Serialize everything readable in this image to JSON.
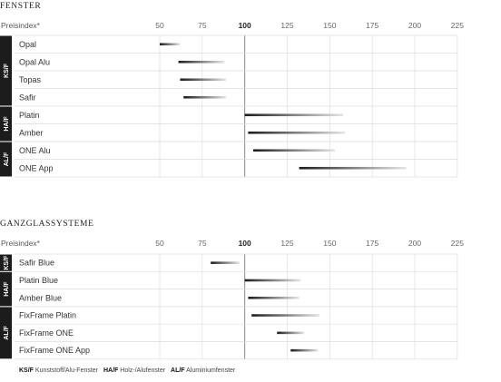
{
  "chart_data": [
    {
      "type": "range-bar",
      "title": "FENSTER",
      "axis_label": "Preisindex*",
      "ticks": [
        50,
        75,
        100,
        125,
        150,
        175,
        200,
        225
      ],
      "xlim": [
        40,
        225
      ],
      "reference": 100,
      "groups": [
        {
          "label": "KS/F",
          "rows": [
            {
              "label": "Opal",
              "start": 50,
              "end": 62
            },
            {
              "label": "Opal Alu",
              "start": 61,
              "end": 88
            },
            {
              "label": "Topas",
              "start": 62,
              "end": 89
            },
            {
              "label": "Safir",
              "start": 64,
              "end": 89
            }
          ]
        },
        {
          "label": "HA/F",
          "rows": [
            {
              "label": "Platin",
              "start": 100,
              "end": 158
            },
            {
              "label": "Amber",
              "start": 102,
              "end": 159
            }
          ]
        },
        {
          "label": "AL/F",
          "rows": [
            {
              "label": "ONE Alu",
              "start": 105,
              "end": 153
            },
            {
              "label": "ONE App",
              "start": 132,
              "end": 195
            }
          ]
        }
      ]
    },
    {
      "type": "range-bar",
      "title": "GANZGLASSYSTEME",
      "axis_label": "Preisindex*",
      "ticks": [
        50,
        75,
        100,
        125,
        150,
        175,
        200,
        225
      ],
      "xlim": [
        40,
        225
      ],
      "reference": 100,
      "groups": [
        {
          "label": "KS/F",
          "rows": [
            {
              "label": "Safir Blue",
              "start": 80,
              "end": 97
            }
          ]
        },
        {
          "label": "HA/F",
          "rows": [
            {
              "label": "Platin Blue",
              "start": 100,
              "end": 133
            },
            {
              "label": "Amber Blue",
              "start": 102,
              "end": 132
            }
          ]
        },
        {
          "label": "AL/F",
          "rows": [
            {
              "label": "FixFrame Platin",
              "start": 104,
              "end": 144
            },
            {
              "label": "FixFrame ONE",
              "start": 119,
              "end": 135
            },
            {
              "label": "FixFrame ONE App",
              "start": 127,
              "end": 143
            }
          ]
        }
      ]
    }
  ],
  "legend": [
    {
      "code": "KS/F",
      "text": "Kunststoff/Alu-Fenster"
    },
    {
      "code": "HA/F",
      "text": "Holz-/Alufenster"
    },
    {
      "code": "AL/F",
      "text": "Aluminiumfenster"
    }
  ],
  "colors": {
    "bar_dark": "#1a1a1a",
    "bar_light": "#e6e6e6",
    "group_bg": "#1c1c1c",
    "grid": "#dddddd",
    "reference_line": "#888888"
  }
}
